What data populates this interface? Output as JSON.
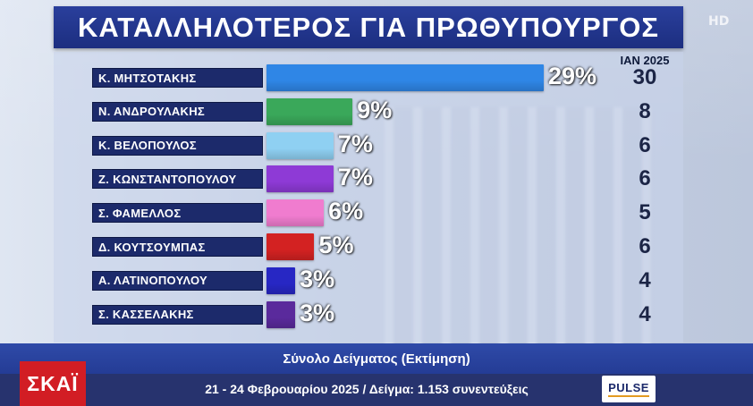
{
  "title": "ΚΑΤΑΛΛΗΛΟΤΕΡΟΣ ΓΙΑ ΠΡΩΘΥΠΟΥΡΓΟΣ",
  "hd_badge": "HD",
  "chart_data": {
    "type": "bar",
    "orientation": "horizontal",
    "categories": [
      "Κ. ΜΗΤΣΟΤΑΚΗΣ",
      "Ν. ΑΝΔΡΟΥΛΑΚΗΣ",
      "Κ. ΒΕΛΟΠΟΥΛΟΣ",
      "Ζ. ΚΩΝΣΤΑΝΤΟΠΟΥΛΟΥ",
      "Σ. ΦΑΜΕΛΛΟΣ",
      "Δ. ΚΟΥΤΣΟΥΜΠΑΣ",
      "Α. ΛΑΤΙΝΟΠΟΥΛΟΥ",
      "Σ. ΚΑΣΣΕΛΑΚΗΣ"
    ],
    "values": [
      29,
      9,
      7,
      7,
      6,
      5,
      3,
      3
    ],
    "value_labels": [
      "29%",
      "9%",
      "7%",
      "7%",
      "6%",
      "5%",
      "3%",
      "3%"
    ],
    "colors": [
      "#2f86e6",
      "#3aa85a",
      "#8fd0f2",
      "#8e3ad6",
      "#f07ccf",
      "#d32222",
      "#2727c4",
      "#5a2a9c"
    ],
    "comparison": {
      "label": "ΙΑΝ 2025",
      "values": [
        30,
        8,
        6,
        6,
        5,
        6,
        4,
        4
      ]
    }
  },
  "footer": {
    "line1": "Σύνολο Δείγματος (Εκτίμηση)",
    "line2": "21 - 24 Φεβρουαρίου 2025 / Δείγμα: 1.153 συνεντεύξεις"
  },
  "logo_text": "ΣΚΑΪ",
  "pulse_logo": "PULSE"
}
